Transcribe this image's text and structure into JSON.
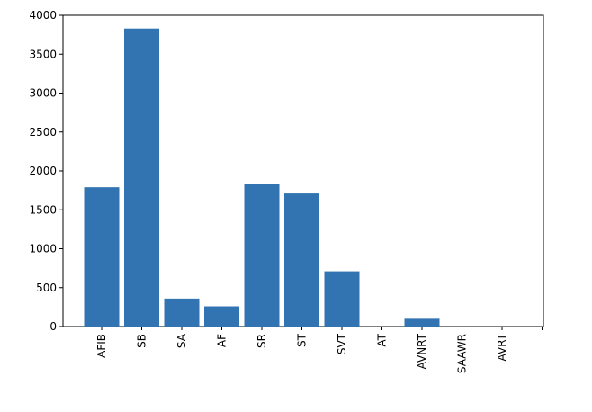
{
  "chart_data": {
    "type": "bar",
    "categories": [
      "AFIB",
      "SB",
      "SA",
      "AF",
      "SR",
      "ST",
      "SVT",
      "AT",
      "AVNRT",
      "SAAWR",
      "AVRT",
      null
    ],
    "values": [
      1790,
      3830,
      360,
      260,
      1830,
      1710,
      710,
      0,
      100,
      0,
      0,
      null
    ],
    "color": "#3274b2",
    "ylim": [
      0,
      4000
    ],
    "yticks": [
      0,
      500,
      1000,
      1500,
      2000,
      2500,
      3000,
      3500,
      4000
    ],
    "grid": false
  }
}
